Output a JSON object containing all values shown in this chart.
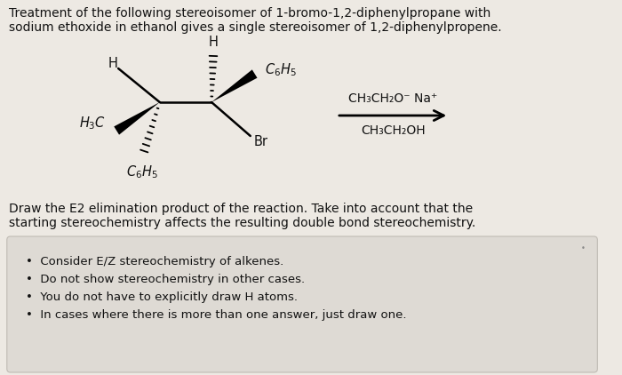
{
  "background_color": "#ede9e3",
  "title_text_line1": "Treatment of the following stereoisomer of 1-bromo-1,2-diphenylpropane with",
  "title_text_line2": "sodium ethoxide in ethanol gives a single stereoisomer of 1,2-diphenylpropene.",
  "title_fontsize": 10.0,
  "question_text_line1": "Draw the E2 elimination product of the reaction. Take into account that the",
  "question_text_line2": "starting stereochemistry affects the resulting double bond stereochemistry.",
  "question_fontsize": 10.0,
  "bullet_points": [
    "Consider E/Z stereochemistry of alkenes.",
    "Do not show stereochemistry in other cases.",
    "You do not have to explicitly draw H atoms.",
    "In cases where there is more than one answer, just draw one."
  ],
  "bullet_fontsize": 9.5,
  "reagent_top": "CH₃CH₂O⁻ Na⁺",
  "reagent_bottom": "CH₃CH₂OH",
  "box_color": "#dedad4",
  "box_edge_color": "#c0bbb4",
  "text_color": "#111111",
  "arrow_color": "#111111",
  "struct_label_fontsize": 10.5,
  "reagent_fontsize": 10.0
}
